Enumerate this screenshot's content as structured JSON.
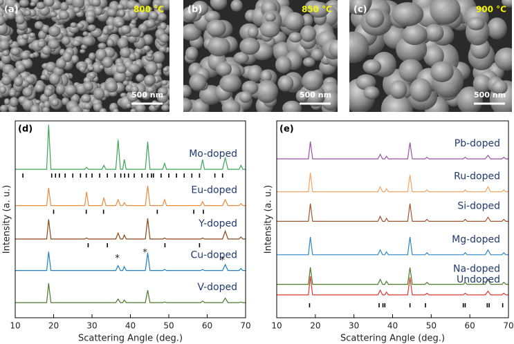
{
  "sem_images": [
    {
      "label": "(a)",
      "temperature": "800 °C",
      "scale_bar": "500 nm"
    },
    {
      "label": "(b)",
      "temperature": "850 °C",
      "scale_bar": "500 nm"
    },
    {
      "label": "(c)",
      "temperature": "900 °C",
      "scale_bar": "500 nm"
    }
  ],
  "chart_data": [
    {
      "type": "line",
      "panel_label": "(d)",
      "xlabel": "Scattering Angle (deg.)",
      "ylabel": "Intensity (a. u.)",
      "xlim": [
        10,
        70
      ],
      "xticks": [
        10,
        20,
        30,
        40,
        50,
        60,
        70
      ],
      "ylim": [
        0,
        100
      ],
      "x": [
        10,
        18.2,
        18.7,
        19.3,
        28.1,
        28.6,
        29.1,
        32.6,
        33.1,
        33.6,
        36.2,
        36.8,
        37.4,
        38.0,
        38.4,
        38.9,
        43.9,
        44.5,
        45.1,
        48.4,
        48.9,
        49.4,
        58.3,
        58.8,
        59.3,
        64.0,
        64.7,
        65.4,
        68.3,
        68.8,
        69.3,
        70
      ],
      "series": [
        {
          "name": "Mo-doped",
          "color": "#3aa655",
          "values": [
            75.4,
            75.4,
            98,
            75.4,
            75.4,
            76.4,
            75.4,
            75.4,
            77.4,
            75.4,
            75.4,
            90.4,
            75.4,
            75.4,
            80.4,
            75.4,
            75.4,
            89.4,
            75.4,
            75.4,
            78.4,
            75.4,
            75.4,
            80.4,
            75.4,
            75.4,
            81.4,
            75.4,
            75.4,
            77.4,
            75.4,
            75.4
          ],
          "ref_ticks": [
            12,
            19.5,
            20.5,
            21.5,
            23,
            25,
            27,
            28.5,
            30,
            32,
            34,
            36,
            37.5,
            38.5,
            39.5,
            41,
            43,
            44.5,
            45.5,
            46,
            48,
            50,
            52,
            54,
            56,
            58,
            62,
            64
          ]
        },
        {
          "name": "Eu-doped",
          "color": "#f08a3c",
          "values": [
            57,
            57,
            66,
            57,
            57,
            64,
            57,
            57,
            61,
            57,
            57,
            60,
            57,
            57,
            58.5,
            57,
            57,
            67,
            57,
            57,
            60,
            57,
            57,
            59,
            57,
            57,
            60,
            57,
            57,
            58,
            57,
            57
          ],
          "ref_ticks": [
            20,
            28.5,
            33,
            47,
            56.5,
            59
          ]
        },
        {
          "name": "Y-doped",
          "color": "#8b4513",
          "values": [
            40,
            40,
            50,
            40,
            40,
            40.5,
            40,
            40,
            40,
            40,
            40,
            43,
            40,
            40,
            42,
            40,
            40,
            50.5,
            40,
            40,
            40.5,
            40,
            40,
            40.5,
            40,
            40,
            44,
            40,
            40,
            41,
            40,
            40
          ],
          "ref_ticks": [
            29,
            34,
            49,
            58
          ]
        },
        {
          "name": "Cu-doped",
          "color": "#1f7fc4",
          "values": [
            24,
            24,
            33.5,
            24,
            24,
            24,
            24,
            24,
            24,
            24,
            24,
            26.5,
            24,
            24,
            26,
            24,
            24,
            33,
            24,
            24,
            24.5,
            24,
            24,
            24.5,
            24,
            24,
            27,
            24,
            24,
            25,
            24,
            24
          ]
        },
        {
          "name": "V-doped",
          "color": "#4a7a2a",
          "values": [
            7.7,
            7.7,
            17.5,
            7.7,
            7.7,
            7.7,
            7.7,
            7.7,
            7.7,
            7.7,
            7.7,
            9.5,
            7.7,
            7.7,
            9,
            7.7,
            7.7,
            14,
            7.7,
            7.7,
            8,
            7.7,
            7.7,
            8.5,
            7.7,
            7.7,
            10,
            7.7,
            7.7,
            8,
            7.7,
            7.7
          ]
        }
      ],
      "annotations": [
        {
          "text": "*",
          "x": 36.6,
          "y": 30
        },
        {
          "text": "*",
          "x": 43.8,
          "y": 33
        },
        {
          "text": "*",
          "x": 64,
          "y": 29
        }
      ]
    },
    {
      "type": "line",
      "panel_label": "(e)",
      "xlabel": "Scattering Angle (deg.)",
      "ylabel": "Intensity (a. u.)",
      "xlim": [
        10,
        70
      ],
      "xticks": [
        10,
        20,
        30,
        40,
        50,
        60,
        70
      ],
      "ylim": [
        0,
        100
      ],
      "x": [
        10,
        18.2,
        18.7,
        19.3,
        36.2,
        36.8,
        37.4,
        38.0,
        38.4,
        38.9,
        43.9,
        44.5,
        45.1,
        48.4,
        48.9,
        49.4,
        58.3,
        58.8,
        59.3,
        64.0,
        64.7,
        65.4,
        68.3,
        68.8,
        69.3,
        70
      ],
      "series": [
        {
          "name": "Pb-doped",
          "color": "#9b4fa5",
          "values": [
            80.7,
            80.7,
            89.5,
            80.7,
            80.7,
            83,
            80.7,
            80.7,
            82,
            80.7,
            80.7,
            89,
            80.7,
            80.7,
            81.5,
            80.7,
            80.7,
            81.5,
            80.7,
            80.7,
            82.5,
            80.7,
            80.7,
            81.5,
            80.7,
            80.7
          ]
        },
        {
          "name": "Ru-doped",
          "color": "#f4a460",
          "values": [
            64,
            64,
            73.7,
            64,
            64,
            66.5,
            64,
            64,
            65.5,
            64,
            64,
            72.5,
            64,
            64,
            65,
            64,
            64,
            65,
            64,
            64,
            66.5,
            64,
            64,
            65,
            64,
            64
          ]
        },
        {
          "name": "Si-doped",
          "color": "#a0522d",
          "values": [
            49,
            49,
            58,
            49,
            49,
            51.5,
            49,
            49,
            50.5,
            49,
            49,
            58,
            49,
            49,
            50,
            49,
            49,
            50,
            49,
            49,
            51,
            49,
            49,
            50,
            49,
            49
          ]
        },
        {
          "name": "Mg-doped",
          "color": "#2e86c1",
          "values": [
            32,
            32,
            41,
            32,
            32,
            34.5,
            32,
            32,
            33.5,
            32,
            32,
            41,
            32,
            32,
            33,
            32,
            32,
            33,
            32,
            32,
            34.5,
            32,
            32,
            33,
            32,
            32
          ]
        },
        {
          "name": "Na-doped",
          "color": "#4a7a2a",
          "values": [
            17,
            17,
            25.6,
            17,
            17,
            19.5,
            17,
            17,
            18.5,
            17,
            17,
            25.5,
            17,
            17,
            18,
            17,
            17,
            18,
            17,
            17,
            19.5,
            17,
            17,
            18,
            17,
            17
          ]
        },
        {
          "name": "Undoped",
          "color": "#d9382c",
          "values": [
            11.6,
            11.6,
            21,
            11.6,
            11.6,
            14,
            11.6,
            11.6,
            13,
            11.6,
            11.6,
            20.5,
            11.6,
            11.6,
            12.5,
            11.6,
            11.6,
            12.5,
            11.6,
            11.6,
            13.5,
            11.6,
            11.6,
            12.5,
            11.6,
            11.6
          ],
          "ref_ticks": [
            18.5,
            36.5,
            37.5,
            38,
            44.5,
            48.5,
            58.3,
            58.8,
            64.5,
            65,
            68.5
          ]
        }
      ]
    }
  ]
}
